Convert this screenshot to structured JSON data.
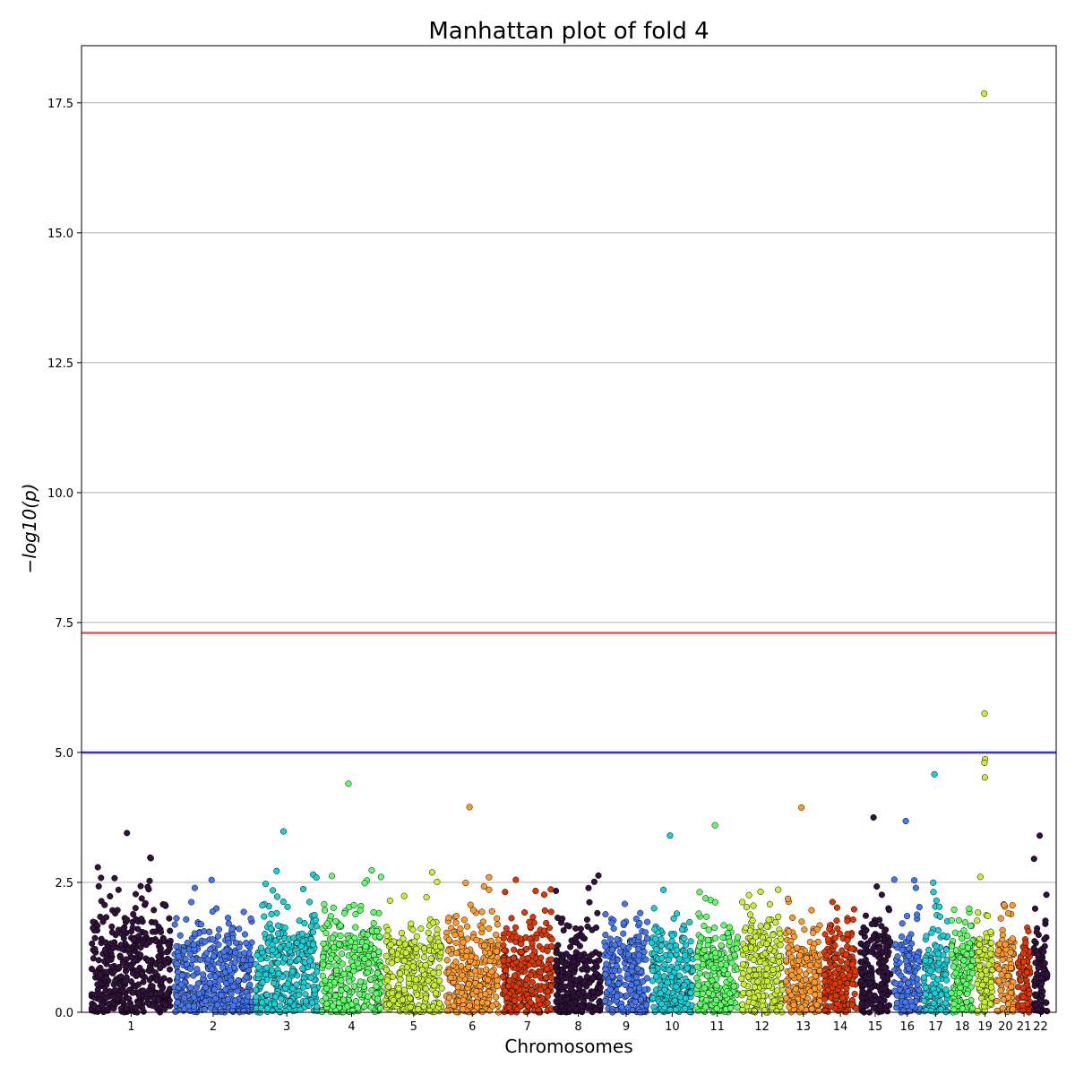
{
  "chart_data": {
    "type": "scatter",
    "title": "Manhattan plot of fold 4",
    "xlabel": "Chromosomes",
    "ylabel": "−log10(p)",
    "ylim": [
      0,
      18.6
    ],
    "y_ticks": [
      "0.0",
      "2.5",
      "5.0",
      "7.5",
      "10.0",
      "12.5",
      "15.0",
      "17.5"
    ],
    "y_tick_values": [
      0,
      2.5,
      5,
      7.5,
      10,
      12.5,
      15,
      17.5
    ],
    "grid": "horizontal",
    "thresholds": [
      {
        "name": "genome-wide-significance",
        "value": 7.3,
        "color": "#ff4d4d"
      },
      {
        "name": "suggestive",
        "value": 5.0,
        "color": "#3333e6"
      }
    ],
    "chromosomes": [
      {
        "label": "1",
        "color": "#30123b",
        "peak": 3.45
      },
      {
        "label": "2",
        "color": "#4777ef",
        "peak": 2.88
      },
      {
        "label": "3",
        "color": "#1ccfd6",
        "peak": 3.48
      },
      {
        "label": "4",
        "color": "#62fc6b",
        "peak": 4.4
      },
      {
        "label": "5",
        "color": "#c8ef34",
        "peak": 3.3
      },
      {
        "label": "6",
        "color": "#fe9b2d",
        "peak": 3.95
      },
      {
        "label": "7",
        "color": "#db3a07",
        "peak": 3.1
      },
      {
        "label": "8",
        "color": "#30123b",
        "peak": 3.05
      },
      {
        "label": "9",
        "color": "#4777ef",
        "peak": 2.25
      },
      {
        "label": "10",
        "color": "#1ccfd6",
        "peak": 3.4
      },
      {
        "label": "11",
        "color": "#62fc6b",
        "peak": 3.6
      },
      {
        "label": "12",
        "color": "#c8ef34",
        "peak": 3.0
      },
      {
        "label": "13",
        "color": "#fe9b2d",
        "peak": 3.95
      },
      {
        "label": "14",
        "color": "#db3a07",
        "peak": 2.3
      },
      {
        "label": "15",
        "color": "#30123b",
        "peak": 3.75
      },
      {
        "label": "16",
        "color": "#4777ef",
        "peak": 3.68
      },
      {
        "label": "17",
        "color": "#1ccfd6",
        "peak": 4.58
      },
      {
        "label": "18",
        "color": "#62fc6b",
        "peak": 2.7
      },
      {
        "label": "19",
        "color": "#c8ef34",
        "peak": 17.7
      },
      {
        "label": "20",
        "color": "#fe9b2d",
        "peak": 3.0
      },
      {
        "label": "21",
        "color": "#db3a07",
        "peak": 2.1
      },
      {
        "label": "22",
        "color": "#30123b",
        "peak": 3.4
      }
    ],
    "notable_points": [
      {
        "chromosome": "19",
        "y": 17.68
      },
      {
        "chromosome": "19",
        "y": 5.75
      },
      {
        "chromosome": "19",
        "y": 4.87
      },
      {
        "chromosome": "19",
        "y": 4.8
      },
      {
        "chromosome": "19",
        "y": 4.52
      },
      {
        "chromosome": "17",
        "y": 4.58
      },
      {
        "chromosome": "4",
        "y": 4.4
      },
      {
        "chromosome": "6",
        "y": 3.95
      },
      {
        "chromosome": "13",
        "y": 3.94
      },
      {
        "chromosome": "15",
        "y": 3.75
      },
      {
        "chromosome": "16",
        "y": 3.68
      },
      {
        "chromosome": "11",
        "y": 3.6
      },
      {
        "chromosome": "3",
        "y": 3.48
      },
      {
        "chromosome": "1",
        "y": 3.45
      },
      {
        "chromosome": "10",
        "y": 3.4
      },
      {
        "chromosome": "22",
        "y": 3.4
      }
    ]
  }
}
